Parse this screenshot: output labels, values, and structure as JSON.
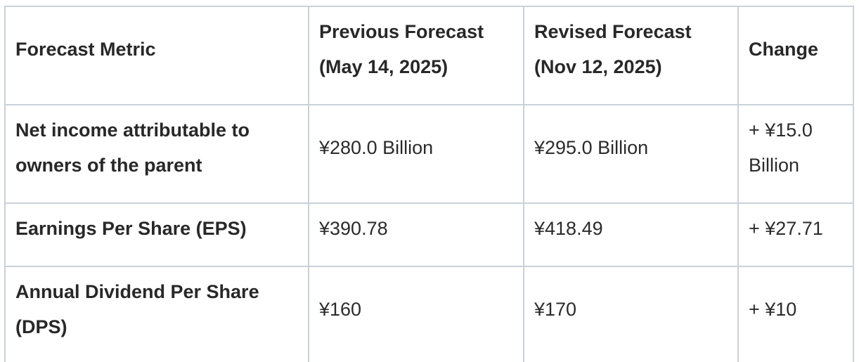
{
  "table": {
    "headers": [
      "Forecast Metric",
      "Previous Forecast (May 14, 2025)",
      "Revised Forecast (Nov 12, 2025)",
      "Change"
    ],
    "rows": [
      {
        "metric": "Net income attributable to owners of the parent",
        "previous": "¥280.0 Billion",
        "revised": "¥295.0 Billion",
        "change": "+ ¥15.0 Billion"
      },
      {
        "metric": "Earnings Per Share (EPS)",
        "previous": "¥390.78",
        "revised": "¥418.49",
        "change": "+ ¥27.71"
      },
      {
        "metric": "Annual Dividend Per Share (DPS)",
        "previous": "¥160",
        "revised": "¥170",
        "change": "+ ¥10"
      }
    ]
  },
  "colors": {
    "border": "#cbd1d9",
    "text": "#2b2b2b",
    "background": "#ffffff"
  }
}
